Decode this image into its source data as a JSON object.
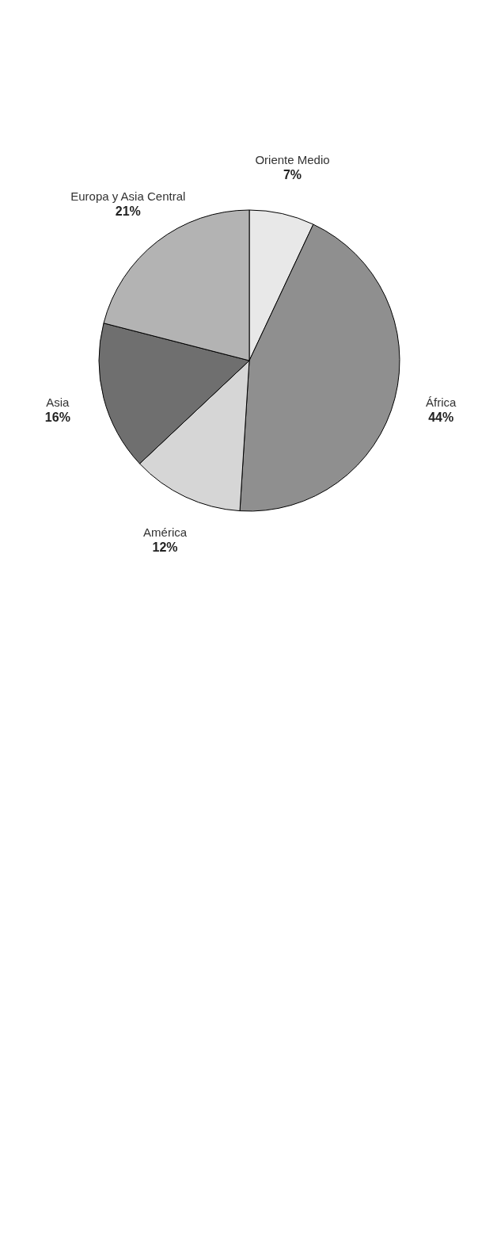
{
  "chart_data": {
    "type": "pie",
    "categories": [
      "Oriente Medio",
      "África",
      "América",
      "Asia",
      "Europa y Asia Central"
    ],
    "values": [
      7,
      44,
      12,
      16,
      21
    ],
    "colors": [
      "#e8e8e8",
      "#8f8f8f",
      "#d6d6d6",
      "#6f6f6f",
      "#b3b3b3"
    ],
    "value_labels": [
      "7%",
      "44%",
      "12%",
      "16%",
      "21%"
    ]
  }
}
